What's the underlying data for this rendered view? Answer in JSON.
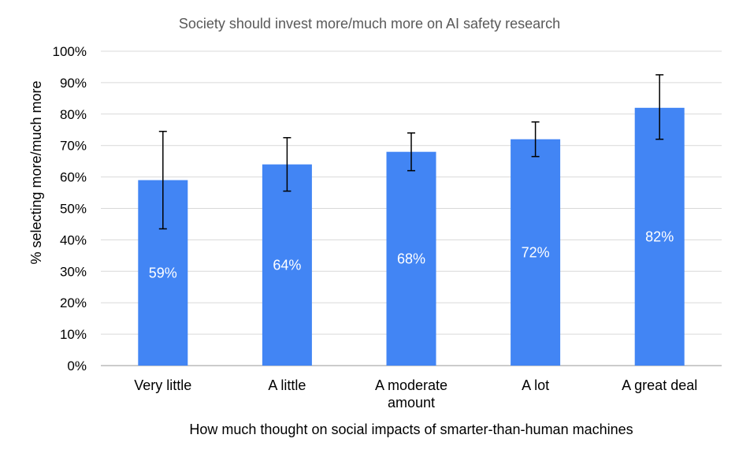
{
  "chart_data": {
    "type": "bar",
    "title": "Society should invest more/much more on AI safety research",
    "xlabel": "How much thought on social impacts of smarter-than-human machines",
    "ylabel": "% selecting more/much more",
    "categories": [
      "Very little",
      "A little",
      "A moderate amount",
      "A lot",
      "A great deal"
    ],
    "category_lines": [
      [
        "Very little"
      ],
      [
        "A little"
      ],
      [
        "A moderate",
        "amount"
      ],
      [
        "A lot"
      ],
      [
        "A great deal"
      ]
    ],
    "values": [
      59,
      64,
      68,
      72,
      82
    ],
    "data_labels": [
      "59%",
      "64%",
      "68%",
      "72%",
      "82%"
    ],
    "error_bars": [
      {
        "low": 43.5,
        "high": 74.5
      },
      {
        "low": 55.5,
        "high": 72.5
      },
      {
        "low": 62,
        "high": 74
      },
      {
        "low": 66.5,
        "high": 77.5
      },
      {
        "low": 72,
        "high": 92.5
      }
    ],
    "ylim": [
      0,
      100
    ],
    "yticks": [
      0,
      10,
      20,
      30,
      40,
      50,
      60,
      70,
      80,
      90,
      100
    ],
    "ytick_labels": [
      "0%",
      "10%",
      "20%",
      "30%",
      "40%",
      "50%",
      "60%",
      "70%",
      "80%",
      "90%",
      "100%"
    ],
    "grid": true,
    "colors": {
      "bar": "#4285f4",
      "grid": "#d9d9d9",
      "axis": "#999999",
      "error_bar": "#000000",
      "title": "#595959",
      "text": "#000000",
      "data_label": "#ffffff"
    }
  }
}
